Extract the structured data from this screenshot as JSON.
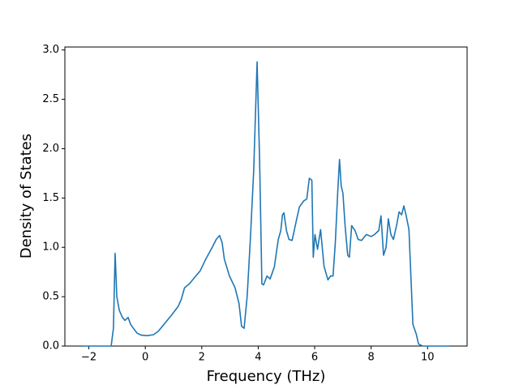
{
  "chart_data": {
    "type": "line",
    "xlabel": "Frequency (THz)",
    "ylabel": "Density of States",
    "color": "#1f77b4",
    "x": [
      -2.22,
      -1.21,
      -1.13,
      -1.07,
      -1.01,
      -0.92,
      -0.81,
      -0.72,
      -0.61,
      -0.52,
      -0.4,
      -0.29,
      -0.14,
      0.06,
      0.29,
      0.46,
      0.66,
      0.92,
      1.16,
      1.27,
      1.39,
      1.56,
      1.76,
      1.94,
      2.14,
      2.37,
      2.51,
      2.63,
      2.72,
      2.8,
      2.98,
      3.18,
      3.32,
      3.41,
      3.5,
      3.61,
      3.73,
      3.84,
      3.96,
      4.05,
      4.13,
      4.19,
      4.31,
      4.42,
      4.57,
      4.71,
      4.8,
      4.86,
      4.91,
      5.0,
      5.09,
      5.2,
      5.35,
      5.46,
      5.61,
      5.72,
      5.81,
      5.9,
      5.95,
      6.01,
      6.1,
      6.21,
      6.33,
      6.47,
      6.56,
      6.65,
      6.73,
      6.82,
      6.88,
      6.94,
      7.0,
      7.08,
      7.17,
      7.23,
      7.31,
      7.43,
      7.54,
      7.66,
      7.83,
      8.0,
      8.12,
      8.27,
      8.35,
      8.44,
      8.53,
      8.61,
      8.7,
      8.79,
      8.9,
      8.99,
      9.08,
      9.16,
      9.25,
      9.34,
      9.42,
      9.48,
      9.6,
      9.68,
      9.83,
      10.78
    ],
    "values": [
      0,
      0,
      0.18,
      0.94,
      0.5,
      0.36,
      0.29,
      0.26,
      0.29,
      0.22,
      0.17,
      0.13,
      0.11,
      0.105,
      0.115,
      0.15,
      0.22,
      0.31,
      0.4,
      0.47,
      0.59,
      0.63,
      0.7,
      0.76,
      0.88,
      1.0,
      1.08,
      1.12,
      1.05,
      0.88,
      0.71,
      0.59,
      0.43,
      0.2,
      0.18,
      0.51,
      1.13,
      1.78,
      2.88,
      1.87,
      0.63,
      0.62,
      0.71,
      0.68,
      0.8,
      1.08,
      1.17,
      1.33,
      1.35,
      1.17,
      1.08,
      1.07,
      1.27,
      1.41,
      1.47,
      1.49,
      1.7,
      1.68,
      0.9,
      1.13,
      0.98,
      1.18,
      0.81,
      0.67,
      0.71,
      0.71,
      1.04,
      1.58,
      1.89,
      1.62,
      1.55,
      1.21,
      0.92,
      0.9,
      1.22,
      1.17,
      1.08,
      1.07,
      1.13,
      1.11,
      1.13,
      1.17,
      1.32,
      0.92,
      1.0,
      1.29,
      1.13,
      1.08,
      1.22,
      1.36,
      1.33,
      1.42,
      1.31,
      1.18,
      0.63,
      0.22,
      0.12,
      0.02,
      0,
      0
    ],
    "xlim": [
      -2.85,
      11.4
    ],
    "ylim": [
      0,
      3.03
    ],
    "xticks": [
      {
        "value": -2,
        "label": "−2"
      },
      0,
      2,
      4,
      6,
      8,
      10
    ],
    "yticks": [
      {
        "value": 0,
        "label": "0.0"
      },
      {
        "value": 0.5,
        "label": "0.5"
      },
      {
        "value": 1,
        "label": "1.0"
      },
      {
        "value": 1.5,
        "label": "1.5"
      },
      {
        "value": 2,
        "label": "2.0"
      },
      {
        "value": 2.5,
        "label": "2.5"
      },
      {
        "value": 3,
        "label": "3.0"
      }
    ],
    "grid": false
  }
}
